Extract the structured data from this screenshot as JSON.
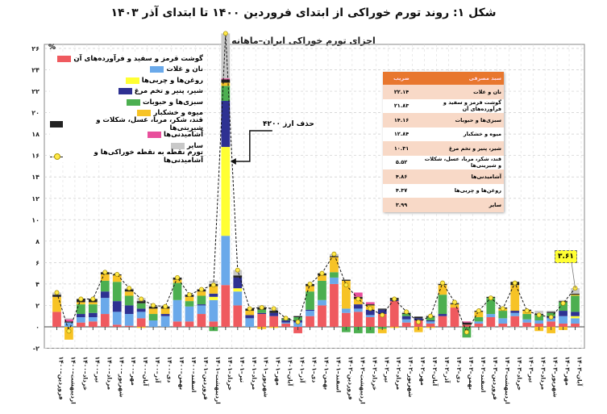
{
  "title": "شکل ۱: روند تورم خوراکی از ابتدای فروردین ۱۴۰۰ تا ابتدای آذر ۱۴۰۳",
  "chart_data": {
    "type": "bar",
    "stacked": true,
    "title": "اجزای تورم خوراکی ایران–ماهانه",
    "ylabel": "%",
    "ylim": [
      -2,
      26
    ],
    "yticks": [
      -2,
      0,
      2,
      4,
      6,
      8,
      10,
      12,
      14,
      16,
      18,
      20,
      22,
      24,
      26
    ],
    "grid": true,
    "legend_position": "top-left",
    "categories": [
      "۱۴۰۰–فروردین",
      "۱۴۰۰–اردیبهشت",
      "۱۴۰۰–خرداد",
      "۱۴۰۰–تیر",
      "۱۴۰۰–مرداد",
      "۱۴۰۰–شهریور",
      "۱۴۰۰–مهر",
      "۱۴۰۰–آبان",
      "۱۴۰۰–آذر",
      "۱۴۰۰–دی",
      "۱۴۰۰–بهمن",
      "۱۴۰۰–اسفند",
      "۱۴۰۱–فروردین",
      "۱۴۰۱–اردیبهشت",
      "۱۴۰۱–خرداد",
      "۱۴۰۱–تیر",
      "۱۴۰۱–مرداد",
      "۱۴۰۱–شهریور",
      "۱۴۰۱–مهر",
      "۱۴۰۱–آبان",
      "۱۴۰۱–آذر",
      "۱۴۰۱–دی",
      "۱۴۰۱–بهمن",
      "۱۴۰۱–اسفند",
      "۱۴۰۲–فروردین",
      "۱۴۰۲–اردیبهشت",
      "۱۴۰۲–خرداد",
      "۱۴۰۲–تیر",
      "۱۴۰۲–مرداد",
      "۱۴۰۲–شهریور",
      "۱۴۰۲–مهر",
      "۱۴۰۲–آبان",
      "۱۴۰۲–آذر",
      "۱۴۰۲–دی",
      "۱۴۰۲–بهمن",
      "۱۴۰۲–اسفند",
      "۱۴۰۳–فروردین",
      "۱۴۰۳–اردیبهشت",
      "۱۴۰۳–خرداد",
      "۱۴۰۳–تیر",
      "۱۴۰۳–مرداد",
      "۱۴۰۳–شهریور",
      "۱۴۰۳–مهر",
      "۱۴۰۳–آبان"
    ],
    "series": [
      {
        "name": "گوشت قرمز و سفید و فرآورده‌های آن",
        "color": "#ef5a5f",
        "values": [
          1.4,
          0,
          0.4,
          0.5,
          1.2,
          0.2,
          0.1,
          0.8,
          0,
          0,
          0.5,
          0.5,
          1.2,
          0.5,
          3.9,
          2.0,
          0,
          1.2,
          1.0,
          0.3,
          -0.6,
          1.0,
          2.0,
          4.0,
          1.3,
          1.4,
          0.9,
          1.2,
          2.4,
          0.4,
          0.6,
          0.3,
          1.0,
          1.8,
          0.2,
          0.3,
          0.9,
          0.3,
          1.0,
          0.4,
          0.3,
          0.5,
          0.3,
          0.3
        ]
      },
      {
        "name": "نان و غلات",
        "color": "#6aa9ea",
        "values": [
          0,
          0.4,
          0.5,
          0.4,
          1.5,
          1.2,
          1.1,
          0.6,
          0.6,
          1.0,
          2.0,
          1.4,
          0.8,
          2.0,
          4.6,
          1.3,
          0.8,
          0,
          0,
          0.1,
          0.4,
          0.5,
          0.5,
          0.6,
          0.4,
          0.3,
          0.2,
          0,
          0,
          0.3,
          0,
          0.2,
          0,
          0,
          0,
          0.2,
          0.3,
          0.5,
          0.3,
          0.3,
          0.3,
          0.3,
          0.7,
          0.5
        ]
      },
      {
        "name": "روغن‌ها و چربی‌ها",
        "color": "#ffff33",
        "values": [
          0,
          0,
          0,
          0,
          0,
          0,
          0,
          0,
          0,
          0,
          0,
          0,
          0,
          0.3,
          8.3,
          0.3,
          0,
          0,
          0,
          0,
          0,
          0,
          0,
          0,
          0,
          0,
          0,
          0,
          0,
          0,
          0,
          0,
          0,
          0,
          0,
          0,
          0,
          0,
          0,
          0,
          0,
          0,
          0,
          0.2
        ]
      },
      {
        "name": "شیر، پنیر و تخم مرغ",
        "color": "#2e3192",
        "values": [
          0,
          0,
          0.3,
          0.4,
          0.6,
          1.0,
          0.8,
          0.3,
          0,
          0.2,
          0,
          0,
          0.1,
          0.3,
          4.3,
          1.0,
          0.3,
          0.1,
          0.3,
          0.2,
          0.2,
          0.1,
          0,
          0,
          0,
          0.4,
          0.5,
          0.4,
          0.1,
          0.3,
          0.2,
          0.1,
          0.2,
          0,
          0,
          0,
          0,
          0,
          0.2,
          0,
          0,
          0.2,
          0.5,
          0.4
        ]
      },
      {
        "name": "سبزی‌ها و حبوبات",
        "color": "#4caf50",
        "values": [
          0,
          0,
          0.9,
          0.8,
          1.0,
          1.8,
          0.9,
          0.5,
          0.6,
          0,
          1.6,
          0.5,
          0.8,
          -0.4,
          1.4,
          0,
          0,
          0.3,
          0,
          0.1,
          0.3,
          1.7,
          1.8,
          0.5,
          -0.5,
          -0.6,
          -0.6,
          -0.2,
          0,
          0.2,
          0,
          0.3,
          1.8,
          0,
          -1.0,
          0.4,
          1.5,
          0.7,
          0,
          0.5,
          0.5,
          0.3,
          0.8,
          1.5
        ]
      },
      {
        "name": "میوه و خشکبار",
        "color": "#f7c325",
        "values": [
          1.4,
          -1.2,
          0.2,
          0.2,
          0.6,
          0.6,
          0.4,
          -0.1,
          0.5,
          0.5,
          0.3,
          0.4,
          0.4,
          0.7,
          0.3,
          0,
          0.4,
          -0.2,
          -0.1,
          0,
          0,
          0.5,
          0.5,
          1.4,
          2.6,
          0.5,
          0.4,
          -0.4,
          -0.1,
          0,
          -0.5,
          -0.1,
          0.9,
          0.3,
          0,
          0.5,
          0,
          0.2,
          2.4,
          0.3,
          -0.4,
          -0.6,
          -0.3,
          0.1
        ]
      },
      {
        "name": "قند، شکر، مربا، عسل، شکلات و شیرینی‌ها",
        "color": "#222222",
        "values": [
          0.2,
          0.1,
          0.3,
          0.3,
          0.2,
          0.1,
          0.2,
          0.2,
          0.2,
          0.2,
          0.2,
          0.2,
          0.2,
          0.2,
          0.3,
          0.2,
          0.2,
          0.2,
          0.2,
          0.1,
          0.1,
          0.2,
          0.2,
          0.1,
          0.1,
          0.2,
          0.1,
          0.1,
          0.2,
          0.1,
          0.15,
          0.1,
          0.1,
          0.1,
          0.2,
          0.1,
          0.1,
          0.1,
          0.3,
          0.1,
          0.1,
          0.1,
          0.1,
          0.1
        ]
      },
      {
        "name": "آشامیدنی‌ها",
        "color": "#e84f9c",
        "values": [
          0,
          0.2,
          0,
          0,
          0,
          0,
          0,
          0,
          0,
          0,
          0,
          0,
          0,
          0,
          0.1,
          0,
          0,
          0,
          0,
          0,
          0,
          0,
          0,
          0,
          0,
          0.4,
          0.2,
          0,
          0,
          0,
          0,
          0,
          0,
          0,
          0.1,
          0,
          0,
          0,
          0,
          0,
          0,
          0,
          0,
          0
        ]
      },
      {
        "name": "سایر",
        "color": "#c8c8c8",
        "values": [
          0.2,
          0.1,
          0,
          0,
          0,
          0,
          0.1,
          0.3,
          0.1,
          0,
          0,
          0,
          0,
          0.3,
          4.2,
          0.5,
          0,
          0.2,
          0.3,
          0,
          0.05,
          0,
          0,
          0.2,
          0,
          0,
          0,
          0,
          0,
          0.1,
          0,
          0.1,
          0.1,
          0.1,
          0,
          0,
          -0.1,
          -0.1,
          -0.1,
          -0.1,
          0.3,
          0.1,
          0.1,
          0.51
        ]
      }
    ],
    "line": {
      "name": "تورم نقطه به نقطه خوراکی‌ها و آشامیدنی‌ها",
      "color": "#ffe94a",
      "values": [
        3.2,
        -0.4,
        2.6,
        2.6,
        5.1,
        4.9,
        3.6,
        2.6,
        2.0,
        1.9,
        4.6,
        3.0,
        3.5,
        3.9,
        27.4,
        5.3,
        1.7,
        1.8,
        1.7,
        0.8,
        0.45,
        4.0,
        5.0,
        6.8,
        3.9,
        2.6,
        1.7,
        1.1,
        2.6,
        1.4,
        0.45,
        1.0,
        4.1,
        2.3,
        -0.5,
        1.5,
        2.7,
        1.7,
        4.1,
        1.5,
        1.1,
        0.9,
        2.2,
        3.61
      ]
    },
    "annotations": [
      {
        "text": "حذف ارز ۴۲۰۰",
        "category": "۱۴۰۱–خرداد"
      },
      {
        "text": "۳.۶۱",
        "category": "۱۴۰۳–آبان"
      }
    ]
  },
  "table": {
    "header": {
      "name": "سبد مصرفی",
      "value": "ضریب"
    },
    "rows": [
      {
        "name": "نان و غلات",
        "value": "۲۲.۱۴"
      },
      {
        "name": "گوشت قرمز و سفید و فرآورده‌های آن",
        "value": "۲۱.۸۳"
      },
      {
        "name": "سبزی‌ها و حبوبات",
        "value": "۱۴.۱۶"
      },
      {
        "name": "میوه و خشکبار",
        "value": "۱۲.۸۴"
      },
      {
        "name": "شیر، پنیر و تخم مرغ",
        "value": "۱۰.۳۱"
      },
      {
        "name": "قند، شکر، مربا، عسل، شکلات و شیرینی‌ها",
        "value": "۵.۵۲"
      },
      {
        "name": "آشامیدنی‌ها",
        "value": "۴.۸۶"
      },
      {
        "name": "روغن‌ها و چربی‌ها",
        "value": "۴.۳۷"
      },
      {
        "name": "سایر",
        "value": "۳.۹۹"
      }
    ]
  }
}
